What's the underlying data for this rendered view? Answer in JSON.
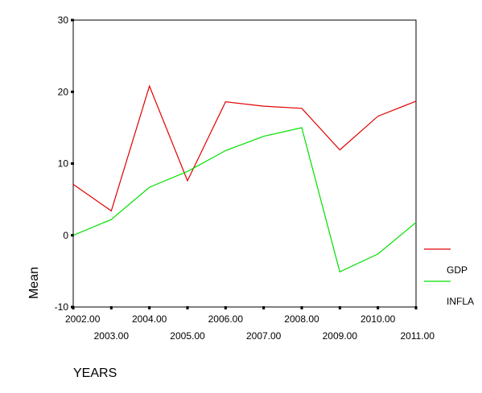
{
  "chart_data": {
    "type": "line",
    "x": [
      "2002.00",
      "2003.00",
      "2004.00",
      "2005.00",
      "2006.00",
      "2007.00",
      "2008.00",
      "2009.00",
      "2010.00",
      "2011.00"
    ],
    "series": [
      {
        "name": "GDP",
        "color": "#e00000",
        "values": [
          7.1,
          3.4,
          20.8,
          7.6,
          18.6,
          18.0,
          17.7,
          11.9,
          16.6,
          18.7
        ]
      },
      {
        "name": "INFLA",
        "color": "#00e000",
        "values": [
          0.0,
          2.2,
          6.7,
          8.9,
          11.8,
          13.8,
          15.0,
          -5.1,
          -2.6,
          1.8
        ]
      }
    ],
    "xlabel": "YEARS",
    "ylabel": "Mean",
    "ylim": [
      -10,
      30
    ],
    "yticks": [
      -10,
      0,
      10,
      20,
      30
    ],
    "grid": false,
    "legend_position": "right"
  }
}
